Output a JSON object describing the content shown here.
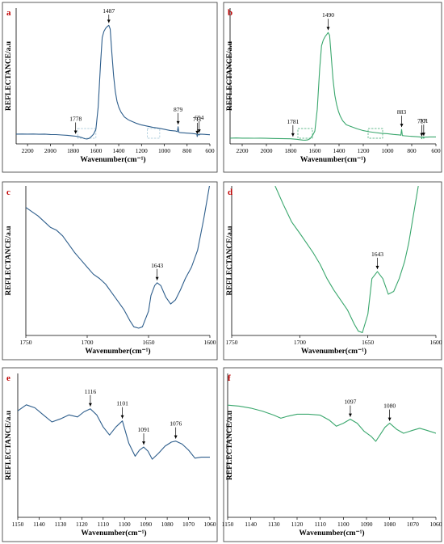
{
  "figure": {
    "colors": {
      "panel_letter": "#c00000",
      "blue_series": "#2e5e8c",
      "green_series": "#3aa76d",
      "box_blue": "#9cc3d5",
      "box_green": "#3aa76d"
    }
  },
  "chart_data": [
    {
      "id": "a",
      "type": "line",
      "panel_label": "a",
      "xlabel": "Wavenumber(cm⁻¹)",
      "ylabel": "REFLECTANCE/a.u",
      "xlim": [
        2300,
        600
      ],
      "ylim": [
        0,
        1
      ],
      "x_reversed": true,
      "show_y_ticks": false,
      "x_ticks": [
        2200,
        2000,
        1800,
        1600,
        1400,
        1200,
        1000,
        800,
        600
      ],
      "color": "#2e5e8c",
      "series": [
        {
          "x": [
            2300,
            2250,
            2200,
            2150,
            2100,
            2050,
            2000,
            1950,
            1900,
            1850,
            1800,
            1778,
            1750,
            1720,
            1700,
            1680,
            1660,
            1640,
            1620,
            1600,
            1580,
            1560,
            1545,
            1530,
            1515,
            1500,
            1487,
            1475,
            1460,
            1445,
            1430,
            1415,
            1400,
            1380,
            1350,
            1320,
            1300,
            1250,
            1200,
            1150,
            1100,
            1050,
            1000,
            950,
            900,
            885,
            879,
            873,
            860,
            800,
            760,
            730,
            715,
            711,
            707,
            700,
            694,
            688,
            650,
            600
          ],
          "y": [
            0.08,
            0.081,
            0.08,
            0.081,
            0.079,
            0.08,
            0.077,
            0.076,
            0.073,
            0.07,
            0.065,
            0.063,
            0.058,
            0.05,
            0.043,
            0.04,
            0.045,
            0.06,
            0.08,
            0.12,
            0.3,
            0.65,
            0.87,
            0.92,
            0.945,
            0.96,
            0.97,
            0.94,
            0.74,
            0.56,
            0.43,
            0.35,
            0.3,
            0.26,
            0.22,
            0.2,
            0.19,
            0.17,
            0.155,
            0.145,
            0.135,
            0.128,
            0.12,
            0.11,
            0.105,
            0.1,
            0.14,
            0.095,
            0.092,
            0.088,
            0.085,
            0.082,
            0.08,
            0.06,
            0.075,
            0.08,
            0.072,
            0.08,
            0.078,
            0.075
          ]
        }
      ],
      "annotations": [
        {
          "label": "1778",
          "x": 1778
        },
        {
          "label": "1487",
          "x": 1487
        },
        {
          "label": "879",
          "x": 879
        },
        {
          "label": "711",
          "x": 711
        },
        {
          "label": "694",
          "x": 694
        }
      ],
      "boxes": [
        {
          "x1": 1760,
          "x2": 1600
        },
        {
          "x1": 1150,
          "x2": 1040
        }
      ]
    },
    {
      "id": "b",
      "type": "line",
      "panel_label": "b",
      "xlabel": "Wavenumber(cm⁻¹)",
      "ylabel": "REFLECTANCE/a.u",
      "xlim": [
        2300,
        600
      ],
      "ylim": [
        0,
        1
      ],
      "x_reversed": true,
      "show_y_ticks": false,
      "x_ticks": [
        2200,
        2000,
        1800,
        1600,
        1400,
        1200,
        1000,
        800,
        600
      ],
      "color": "#3aa76d",
      "series": [
        {
          "x": [
            2300,
            2250,
            2200,
            2150,
            2100,
            2050,
            2000,
            1950,
            1900,
            1850,
            1800,
            1781,
            1750,
            1720,
            1700,
            1680,
            1660,
            1640,
            1620,
            1600,
            1580,
            1560,
            1545,
            1530,
            1515,
            1500,
            1490,
            1478,
            1465,
            1450,
            1435,
            1420,
            1405,
            1390,
            1370,
            1340,
            1300,
            1250,
            1200,
            1150,
            1100,
            1050,
            1000,
            950,
            900,
            890,
            883,
            877,
            860,
            800,
            760,
            730,
            720,
            717,
            714,
            705,
            701,
            697,
            650,
            600
          ],
          "y": [
            0.05,
            0.051,
            0.05,
            0.05,
            0.049,
            0.05,
            0.048,
            0.047,
            0.046,
            0.045,
            0.044,
            0.043,
            0.04,
            0.036,
            0.033,
            0.032,
            0.034,
            0.045,
            0.07,
            0.11,
            0.3,
            0.65,
            0.85,
            0.9,
            0.93,
            0.95,
            0.965,
            0.94,
            0.76,
            0.56,
            0.42,
            0.34,
            0.28,
            0.24,
            0.2,
            0.165,
            0.15,
            0.13,
            0.115,
            0.105,
            0.098,
            0.092,
            0.088,
            0.082,
            0.078,
            0.075,
            0.125,
            0.072,
            0.07,
            0.065,
            0.062,
            0.06,
            0.058,
            0.045,
            0.057,
            0.06,
            0.048,
            0.058,
            0.06,
            0.06
          ]
        }
      ],
      "annotations": [
        {
          "label": "1781",
          "x": 1781
        },
        {
          "label": "1490",
          "x": 1490
        },
        {
          "label": "883",
          "x": 883
        },
        {
          "label": "717",
          "x": 717
        },
        {
          "label": "701",
          "x": 701
        }
      ],
      "boxes": [
        {
          "x1": 1740,
          "x2": 1620
        },
        {
          "x1": 1160,
          "x2": 1040
        }
      ]
    },
    {
      "id": "c",
      "type": "line",
      "panel_label": "c",
      "xlabel": "Wavenumber(cm⁻¹)",
      "ylabel": "REFLECTANCE/a.u",
      "xlim": [
        1750,
        1600
      ],
      "ylim": [
        0,
        1
      ],
      "x_reversed": true,
      "show_y_ticks": false,
      "x_ticks": [
        1750,
        1700,
        1650,
        1600
      ],
      "color": "#2e5e8c",
      "series": [
        {
          "x": [
            1750,
            1745,
            1740,
            1735,
            1730,
            1725,
            1720,
            1715,
            1710,
            1705,
            1700,
            1695,
            1690,
            1685,
            1680,
            1675,
            1670,
            1665,
            1662,
            1658,
            1655,
            1650,
            1648,
            1645,
            1643,
            1640,
            1636,
            1632,
            1628,
            1624,
            1620,
            1615,
            1610,
            1605,
            1602,
            1600
          ],
          "y": [
            0.88,
            0.85,
            0.82,
            0.78,
            0.74,
            0.72,
            0.68,
            0.62,
            0.56,
            0.51,
            0.46,
            0.41,
            0.38,
            0.34,
            0.28,
            0.22,
            0.16,
            0.08,
            0.04,
            0.03,
            0.04,
            0.15,
            0.26,
            0.33,
            0.35,
            0.33,
            0.25,
            0.2,
            0.23,
            0.3,
            0.38,
            0.46,
            0.58,
            0.8,
            0.95,
            1.05
          ]
        }
      ],
      "annotations": [
        {
          "label": "1643",
          "x": 1643
        }
      ]
    },
    {
      "id": "d",
      "type": "line",
      "panel_label": "d",
      "xlabel": "Wavenumber(cm⁻¹)",
      "ylabel": "REFLECTANCE/a.u",
      "xlim": [
        1750,
        1600
      ],
      "ylim": [
        0,
        1
      ],
      "x_reversed": true,
      "show_y_ticks": false,
      "x_ticks": [
        1750,
        1700,
        1650,
        1600
      ],
      "color": "#3aa76d",
      "series": [
        {
          "x": [
            1718,
            1712,
            1706,
            1700,
            1695,
            1690,
            1685,
            1680,
            1675,
            1670,
            1665,
            1660,
            1657,
            1654,
            1650,
            1647,
            1643,
            1639,
            1635,
            1631,
            1627,
            1623,
            1620,
            1617,
            1613
          ],
          "y": [
            1.05,
            0.92,
            0.8,
            0.72,
            0.65,
            0.58,
            0.5,
            0.4,
            0.32,
            0.25,
            0.18,
            0.08,
            0.03,
            0.02,
            0.15,
            0.4,
            0.45,
            0.4,
            0.29,
            0.31,
            0.4,
            0.52,
            0.65,
            0.82,
            1.05
          ]
        }
      ],
      "annotations": [
        {
          "label": "1643",
          "x": 1643
        }
      ]
    },
    {
      "id": "e",
      "type": "line",
      "panel_label": "e",
      "xlabel": "Wavenumber(cm⁻¹)",
      "ylabel": "REFLECTANCE/a.u",
      "xlim": [
        1150,
        1060
      ],
      "ylim": [
        0,
        1
      ],
      "x_reversed": true,
      "show_y_ticks": false,
      "x_ticks": [
        1150,
        1140,
        1130,
        1120,
        1110,
        1100,
        1090,
        1080,
        1070,
        1060
      ],
      "color": "#2e5e8c",
      "series": [
        {
          "x": [
            1150,
            1146,
            1142,
            1138,
            1134,
            1130,
            1126,
            1122,
            1119,
            1116,
            1113,
            1110,
            1107,
            1104,
            1101,
            1098,
            1095,
            1093,
            1091,
            1089,
            1087,
            1084,
            1081,
            1078,
            1076,
            1073,
            1070,
            1067,
            1064,
            1060
          ],
          "y": [
            0.7,
            0.76,
            0.73,
            0.66,
            0.59,
            0.62,
            0.66,
            0.64,
            0.69,
            0.72,
            0.66,
            0.54,
            0.46,
            0.54,
            0.6,
            0.38,
            0.25,
            0.31,
            0.34,
            0.3,
            0.22,
            0.28,
            0.35,
            0.39,
            0.4,
            0.37,
            0.31,
            0.23,
            0.24,
            0.24
          ]
        }
      ],
      "annotations": [
        {
          "label": "1116",
          "x": 1116
        },
        {
          "label": "1101",
          "x": 1101
        },
        {
          "label": "1091",
          "x": 1091
        },
        {
          "label": "1076",
          "x": 1076
        }
      ]
    },
    {
      "id": "f",
      "type": "line",
      "panel_label": "f",
      "xlabel": "Wavenumber(cm⁻¹)",
      "ylabel": "REFLECTANCE/a.u",
      "xlim": [
        1150,
        1060
      ],
      "ylim": [
        0,
        1
      ],
      "x_reversed": true,
      "show_y_ticks": false,
      "x_ticks": [
        1150,
        1140,
        1130,
        1120,
        1110,
        1100,
        1090,
        1080,
        1070,
        1060
      ],
      "color": "#3aa76d",
      "series": [
        {
          "x": [
            1150,
            1145,
            1140,
            1135,
            1130,
            1127,
            1124,
            1120,
            1115,
            1110,
            1106,
            1103,
            1100,
            1097,
            1094,
            1091,
            1088,
            1086,
            1084,
            1082,
            1080,
            1077,
            1074,
            1070,
            1067,
            1064,
            1060
          ],
          "y": [
            0.9,
            0.89,
            0.87,
            0.84,
            0.8,
            0.77,
            0.79,
            0.81,
            0.81,
            0.8,
            0.75,
            0.69,
            0.72,
            0.76,
            0.72,
            0.64,
            0.59,
            0.54,
            0.61,
            0.68,
            0.72,
            0.66,
            0.62,
            0.65,
            0.67,
            0.65,
            0.62
          ]
        }
      ],
      "annotations": [
        {
          "label": "1097",
          "x": 1097
        },
        {
          "label": "1080",
          "x": 1080
        }
      ]
    }
  ]
}
